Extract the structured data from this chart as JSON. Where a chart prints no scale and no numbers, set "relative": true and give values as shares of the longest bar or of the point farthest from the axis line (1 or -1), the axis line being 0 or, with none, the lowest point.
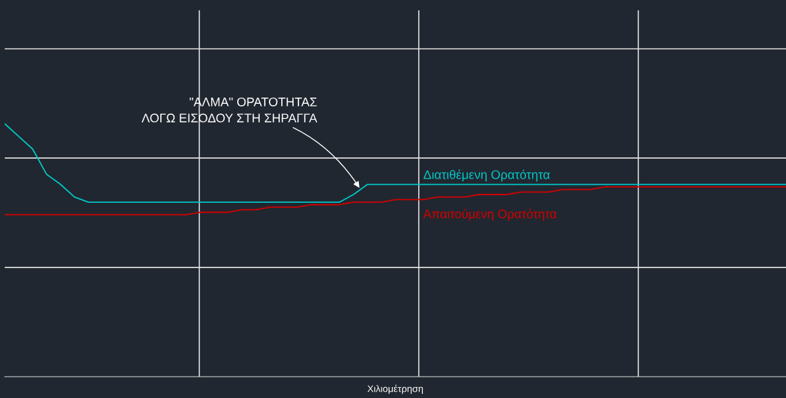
{
  "chart_data": {
    "type": "line",
    "relative": true,
    "xlabel": "Χιλιομέτρηση",
    "categories": [
      null,
      null,
      null,
      null,
      null,
      null,
      null,
      null,
      null,
      null,
      null,
      null,
      null,
      null,
      null,
      null,
      null,
      null,
      null,
      null,
      null,
      null,
      null,
      null,
      null,
      null,
      null,
      null,
      null,
      null,
      null,
      null,
      null,
      null,
      null,
      null,
      null,
      null,
      null,
      null,
      null,
      null,
      null,
      null,
      null,
      null,
      null,
      null,
      null,
      null,
      null,
      null,
      null,
      null,
      null,
      null,
      null
    ],
    "series": [
      {
        "name": "Διατιθέμενη Ορατότητα",
        "color": "#00c8c8",
        "values": [
          1.0,
          0.95,
          0.9,
          0.8,
          0.76,
          0.71,
          0.69,
          0.69,
          0.69,
          0.69,
          0.69,
          0.69,
          0.69,
          0.69,
          0.69,
          0.69,
          0.69,
          0.69,
          0.69,
          0.69,
          0.69,
          0.69,
          0.69,
          0.69,
          0.69,
          0.72,
          0.76,
          0.76,
          0.76,
          0.76,
          0.76,
          0.76,
          0.76,
          0.76,
          0.76,
          0.76,
          0.76,
          0.76,
          0.76,
          0.76,
          0.76,
          0.76,
          0.76,
          0.76,
          0.76,
          0.76,
          0.76,
          0.76,
          0.76,
          0.76,
          0.76,
          0.76,
          0.76,
          0.76,
          0.76,
          0.76,
          0.76
        ]
      },
      {
        "name": "Απαιτούμενη Ορατότητα",
        "color": "#d40000",
        "values": [
          0.64,
          0.64,
          0.64,
          0.64,
          0.64,
          0.64,
          0.64,
          0.64,
          0.64,
          0.64,
          0.64,
          0.64,
          0.64,
          0.64,
          0.65,
          0.65,
          0.65,
          0.66,
          0.66,
          0.67,
          0.67,
          0.67,
          0.68,
          0.68,
          0.68,
          0.69,
          0.69,
          0.69,
          0.7,
          0.7,
          0.7,
          0.71,
          0.71,
          0.71,
          0.72,
          0.72,
          0.72,
          0.73,
          0.73,
          0.73,
          0.74,
          0.74,
          0.74,
          0.75,
          0.75,
          0.75,
          0.75,
          0.75,
          0.75,
          0.75,
          0.75,
          0.75,
          0.75,
          0.75,
          0.75,
          0.75,
          0.75
        ]
      }
    ],
    "annotations": [
      "\"ΑΛΜΑ\" ΟΡΑΤΟΤΗΤΑΣ\nΛΟΓΩ ΕΙΣΟΔΟΥ ΣΤΗ ΣΗΡΑΓΓΑ"
    ],
    "grid": true,
    "legend": false,
    "marker": "none",
    "line_style": "solid"
  }
}
